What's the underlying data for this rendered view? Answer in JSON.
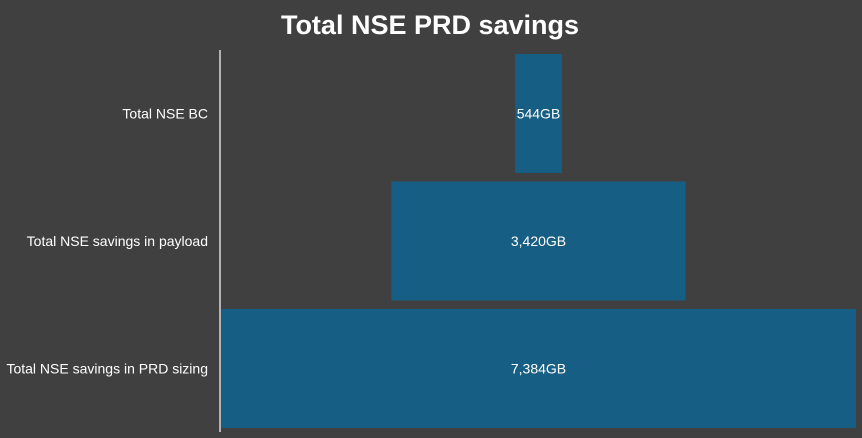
{
  "chart_data": {
    "type": "bar",
    "orientation": "horizontal",
    "style": "funnel",
    "title": "Total NSE PRD savings",
    "categories": [
      "Total NSE BC",
      "Total NSE savings in payload",
      "Total NSE savings in PRD sizing"
    ],
    "values": [
      544,
      3420,
      7384
    ],
    "data_labels": [
      "544GB",
      "3,420GB",
      "7,384GB"
    ],
    "unit": "GB",
    "legend": "none",
    "grid": false
  },
  "colors": {
    "background": "#404040",
    "bar": "#175E84",
    "text": "#ffffff",
    "axis": "#d9d9d9"
  }
}
